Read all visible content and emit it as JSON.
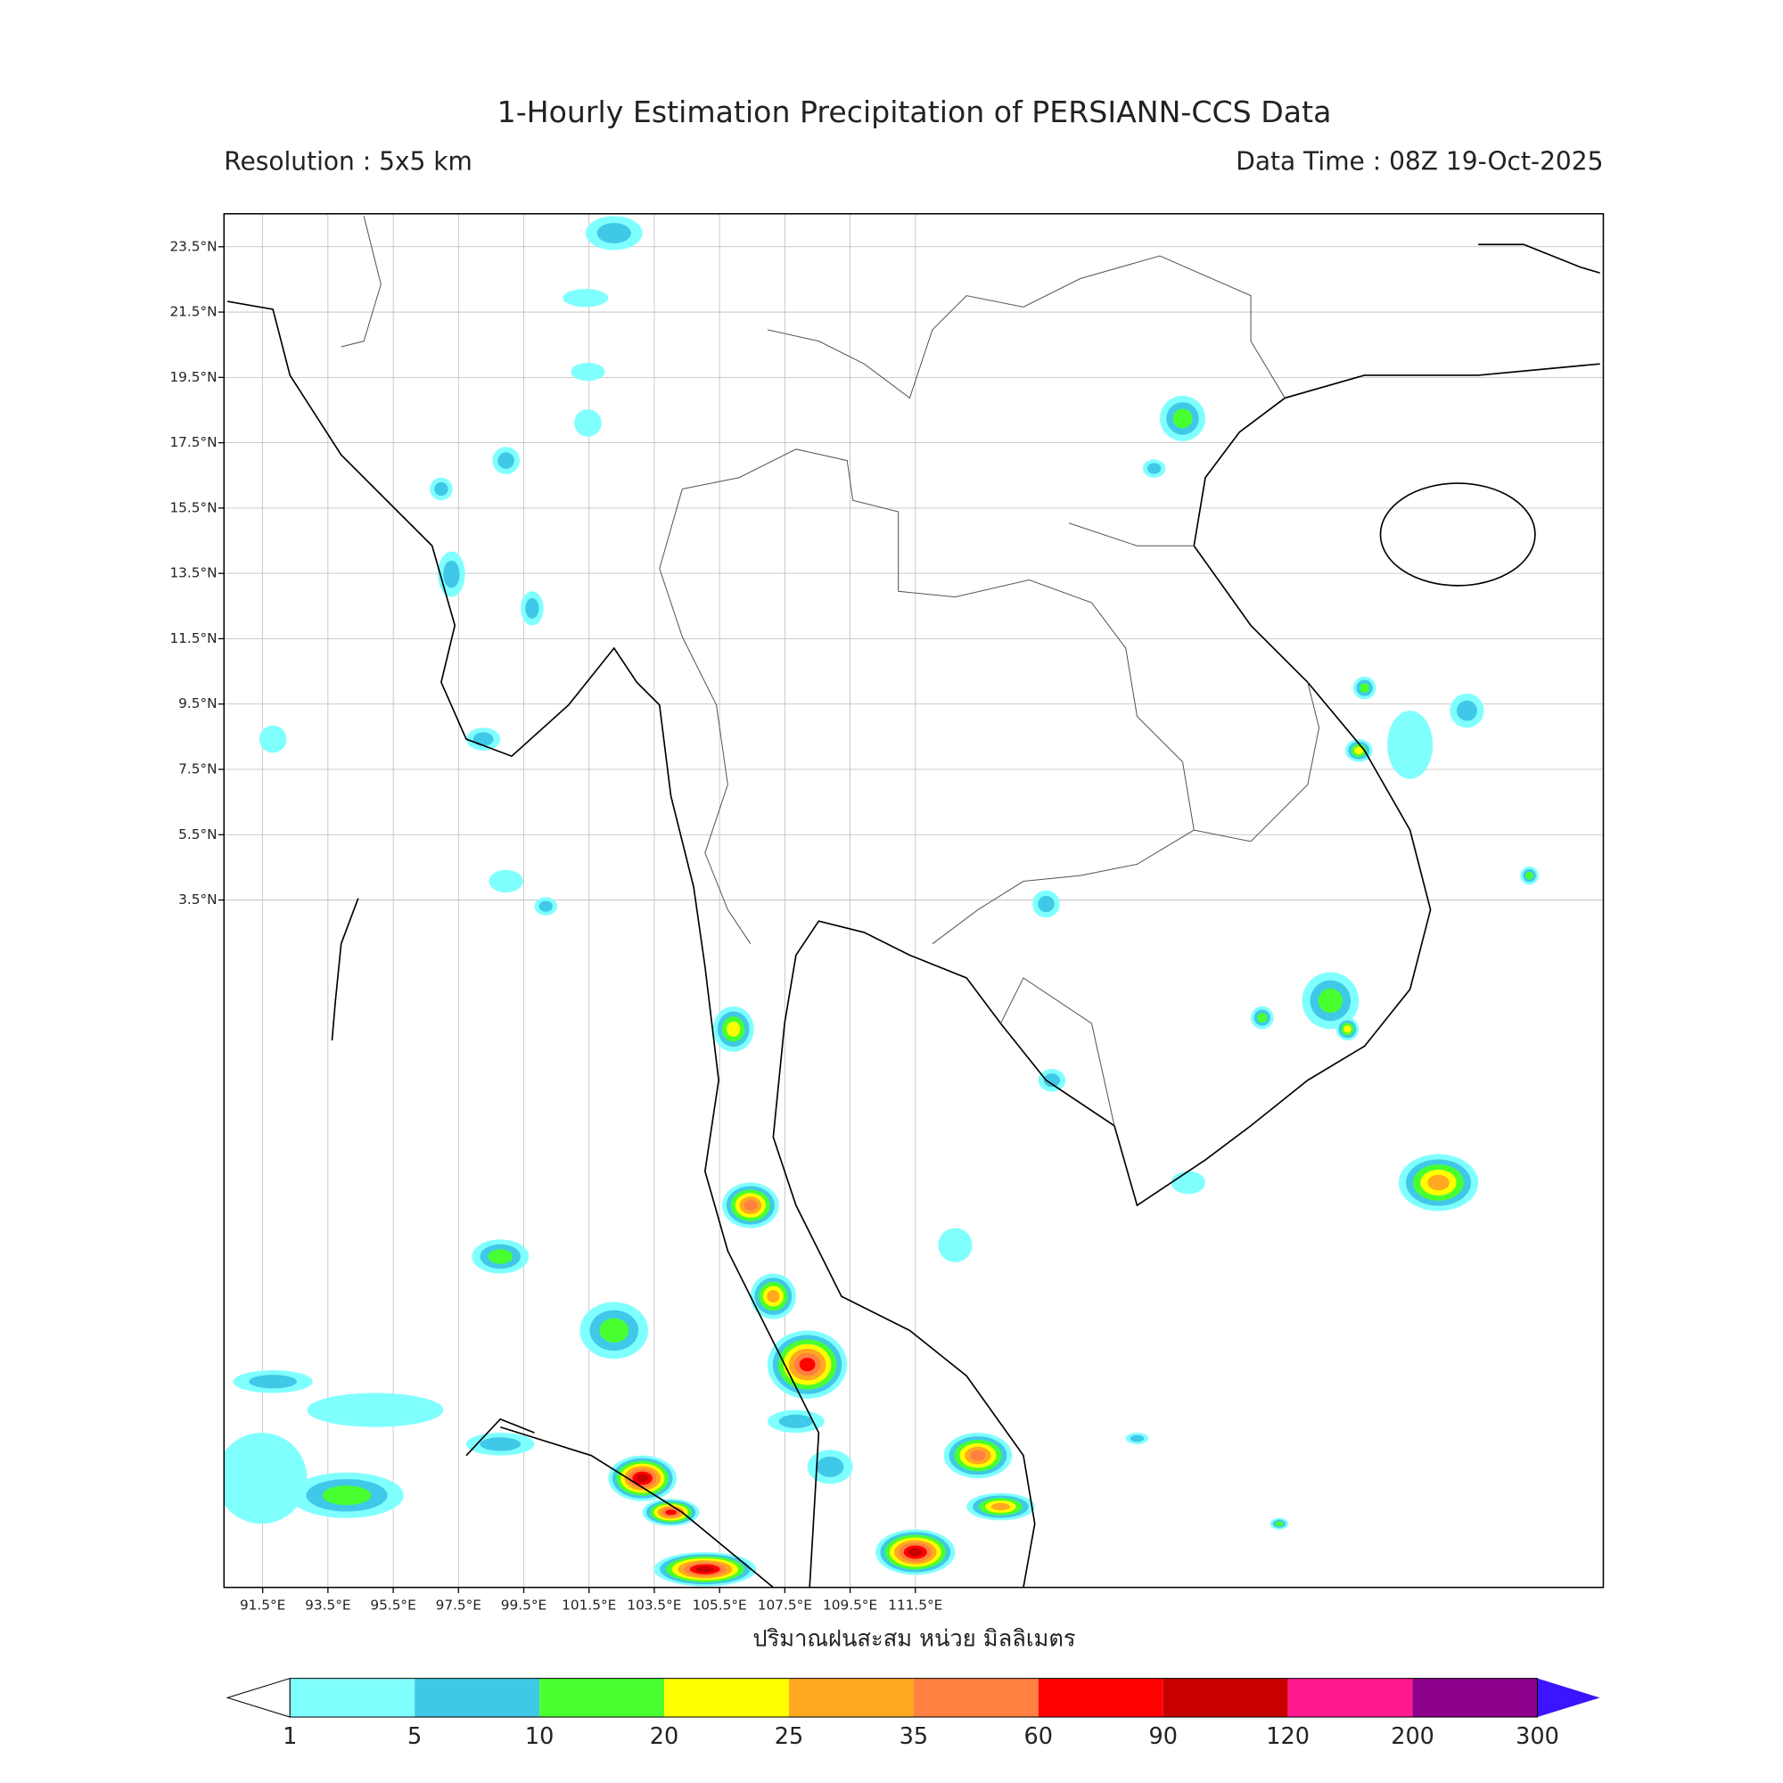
{
  "title": "1-Hourly Estimation Precipitation of PERSIANN-CCS Data",
  "resolution": "Resolution : 5x5 km",
  "data_time": "Data Time : 08Z 19-Oct-2025",
  "lon_ticks": [
    "91.5°E",
    "93.5°E",
    "95.5°E",
    "97.5°E",
    "99.5°E",
    "101.5°E",
    "103.5°E",
    "105.5°E",
    "107.5°E",
    "109.5°E",
    "111.5°E"
  ],
  "lat_ticks": [
    "23.5°N",
    "21.5°N",
    "19.5°N",
    "17.5°N",
    "15.5°N",
    "13.5°N",
    "11.5°N",
    "9.5°N",
    "7.5°N",
    "5.5°N",
    "3.5°N"
  ],
  "xlabel": "ปริมาณฝนสะสม หน่วย มิลลิเมตร",
  "colorbar": {
    "levels": [
      1,
      5,
      10,
      20,
      25,
      35,
      60,
      90,
      120,
      200,
      300
    ],
    "colors": [
      "#80ffff",
      "#40c8e8",
      "#48ff30",
      "#ffff00",
      "#ffa820",
      "#ff8040",
      "#ff0000",
      "#c80000",
      "#ff1890",
      "#8c008c"
    ],
    "under_color": "#ffffff",
    "over_color": "#3c14ff"
  }
}
